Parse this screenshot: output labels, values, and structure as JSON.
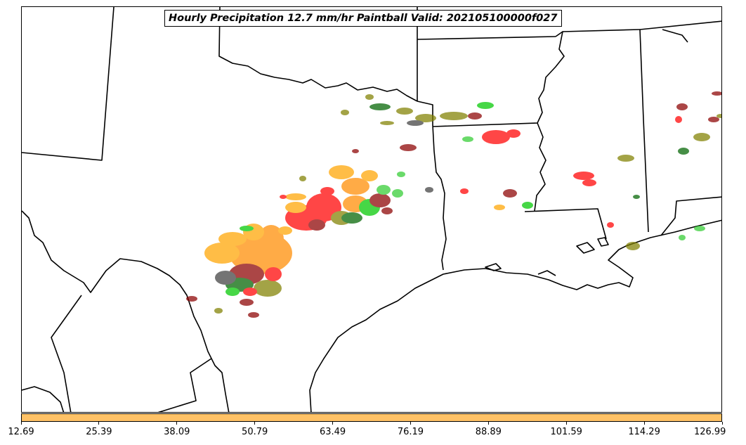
{
  "title": "Hourly Precipitation 12.7 mm/hr Paintball Valid: 202105100000f027",
  "colors": {
    "colorbar": "#ffc266",
    "boundary": "#000000",
    "member_palette": [
      "#ff0000",
      "#ff8c00",
      "#00c800",
      "#8b0000",
      "#808000",
      "#006400",
      "#ffa500",
      "#404040",
      "#32cd32"
    ]
  },
  "colorbar": {
    "ticks": [
      "12.69",
      "25.39",
      "38.09",
      "50.79",
      "63.49",
      "76.19",
      "88.89",
      "101.59",
      "114.29",
      "126.99"
    ]
  }
}
